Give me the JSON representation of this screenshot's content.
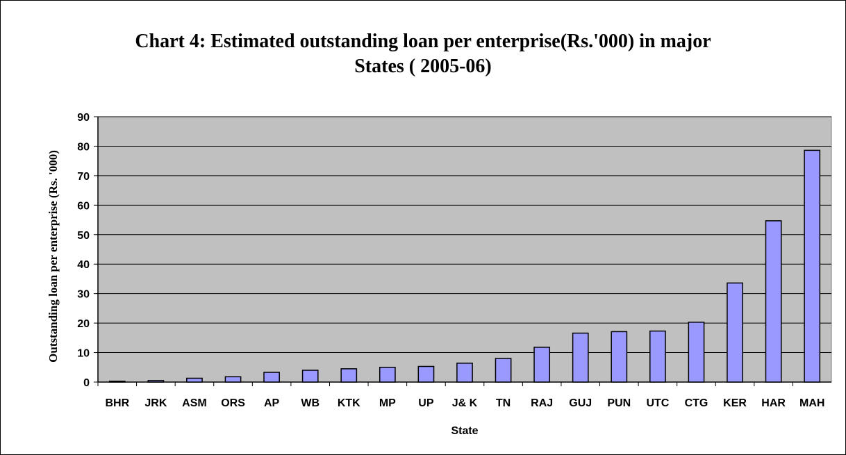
{
  "chart_data": {
    "type": "bar",
    "title_lines": [
      "Chart 4: Estimated outstanding loan per enterprise(Rs.'000) in major",
      "States ( 2005-06)"
    ],
    "xlabel": "State",
    "ylabel": "Outstanding loan per enterprise (Rs. '000)",
    "ylim": [
      0,
      90
    ],
    "yticks": [
      0,
      10,
      20,
      30,
      40,
      50,
      60,
      70,
      80,
      90
    ],
    "categories": [
      "BHR",
      "JRK",
      "ASM",
      "ORS",
      "AP",
      "WB",
      "KTK",
      "MP",
      "UP",
      "J& K",
      "TN",
      "RAJ",
      "GUJ",
      "PUN",
      "UTC",
      "CTG",
      "KER",
      "HAR",
      "MAH"
    ],
    "values": [
      0.3,
      0.5,
      1.3,
      1.8,
      3.3,
      4.0,
      4.5,
      5.0,
      5.3,
      6.4,
      8.0,
      11.8,
      16.6,
      17.1,
      17.3,
      20.3,
      33.6,
      54.7,
      78.6
    ],
    "grid": true,
    "legend": "none",
    "colors": {
      "plot_bg": "#c0c0c0",
      "bar_fill": "#9999ff",
      "bar_stroke": "#000000",
      "grid": "#000000"
    }
  }
}
